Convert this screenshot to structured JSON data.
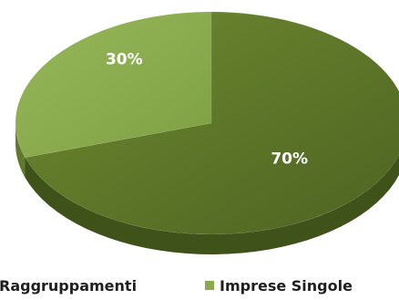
{
  "chart_data": {
    "type": "pie",
    "style": "3d",
    "title": "",
    "categories": [
      "Raggruppamenti",
      "Imprese Singole"
    ],
    "values": [
      70,
      30
    ],
    "labels": [
      "70%",
      "30%"
    ],
    "colors": [
      "#5a7327",
      "#8aaa4b"
    ],
    "side_colors": [
      "#3f521a",
      "#5f7a2d"
    ],
    "legend_position": "bottom",
    "legend": [
      {
        "label": "Raggruppamenti",
        "color": "#5a7327",
        "swatch_visible": false
      },
      {
        "label": "Imprese Singole",
        "color": "#8aaa4b",
        "swatch_visible": true
      }
    ]
  }
}
